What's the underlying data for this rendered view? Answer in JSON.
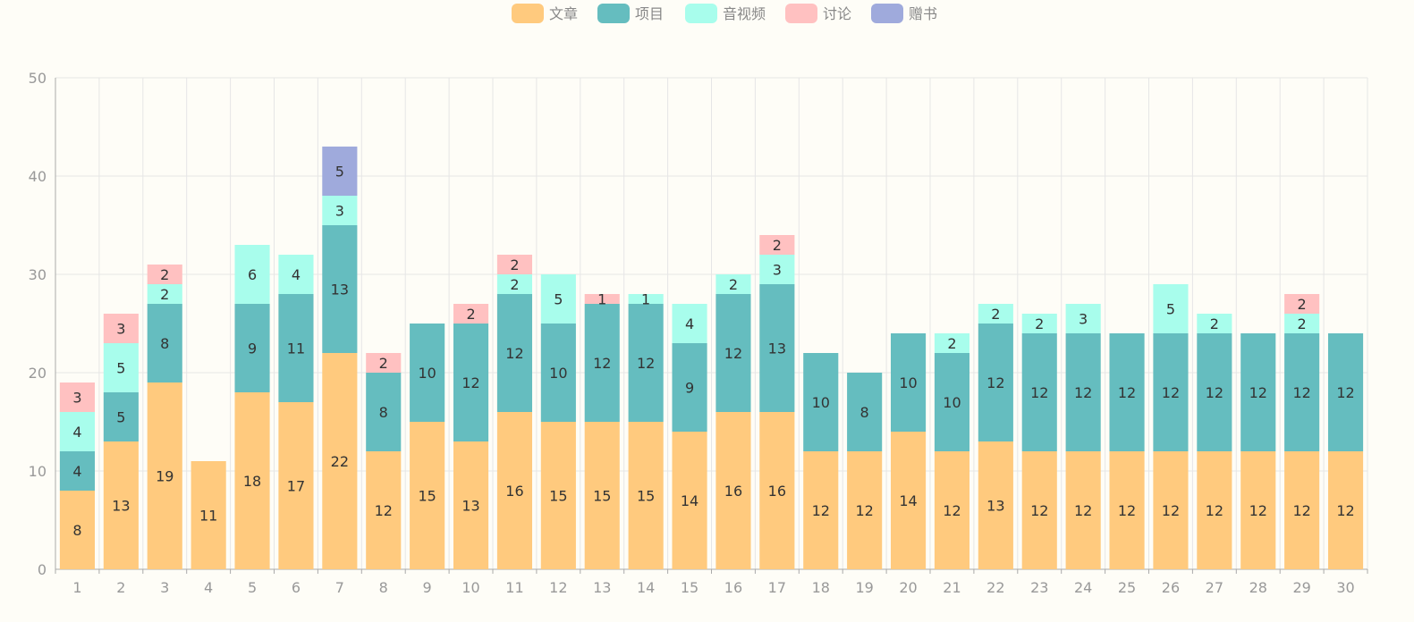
{
  "chart_data": {
    "type": "bar",
    "stacked": true,
    "title": "",
    "xlabel": "",
    "ylabel": "",
    "ylim": [
      0,
      50
    ],
    "yticks": [
      0,
      10,
      20,
      30,
      40,
      50
    ],
    "grid": true,
    "legend_position": "top-center",
    "categories": [
      "1",
      "2",
      "3",
      "4",
      "5",
      "6",
      "7",
      "8",
      "9",
      "10",
      "11",
      "12",
      "13",
      "14",
      "15",
      "16",
      "17",
      "18",
      "19",
      "20",
      "21",
      "22",
      "23",
      "24",
      "25",
      "26",
      "27",
      "28",
      "29",
      "30"
    ],
    "series": [
      {
        "name": "文章",
        "color": "#ffca7e",
        "values": [
          8,
          13,
          19,
          11,
          18,
          17,
          22,
          12,
          15,
          13,
          16,
          15,
          15,
          15,
          14,
          16,
          16,
          12,
          12,
          14,
          12,
          13,
          12,
          12,
          12,
          12,
          12,
          12,
          12,
          12
        ]
      },
      {
        "name": "项目",
        "color": "#65bdbf",
        "values": [
          4,
          5,
          8,
          0,
          9,
          11,
          13,
          8,
          10,
          12,
          12,
          10,
          12,
          12,
          9,
          12,
          13,
          10,
          8,
          10,
          10,
          12,
          12,
          12,
          12,
          12,
          12,
          12,
          12,
          12
        ]
      },
      {
        "name": "音视频",
        "color": "#a8fdec",
        "values": [
          4,
          5,
          2,
          0,
          6,
          4,
          3,
          0,
          0,
          0,
          2,
          5,
          0,
          1,
          4,
          2,
          3,
          0,
          0,
          0,
          2,
          2,
          2,
          3,
          0,
          5,
          2,
          0,
          2,
          0
        ]
      },
      {
        "name": "讨论",
        "color": "#ffc1c1",
        "values": [
          3,
          3,
          2,
          0,
          0,
          0,
          0,
          2,
          0,
          2,
          2,
          0,
          1,
          0,
          0,
          0,
          2,
          0,
          0,
          0,
          0,
          0,
          0,
          0,
          0,
          0,
          0,
          0,
          2,
          0
        ]
      },
      {
        "name": "赠书",
        "color": "#9faadc",
        "values": [
          0,
          0,
          0,
          0,
          0,
          0,
          5,
          0,
          0,
          0,
          0,
          0,
          0,
          0,
          0,
          0,
          0,
          0,
          0,
          0,
          0,
          0,
          0,
          0,
          0,
          0,
          0,
          0,
          0,
          0
        ]
      }
    ]
  }
}
